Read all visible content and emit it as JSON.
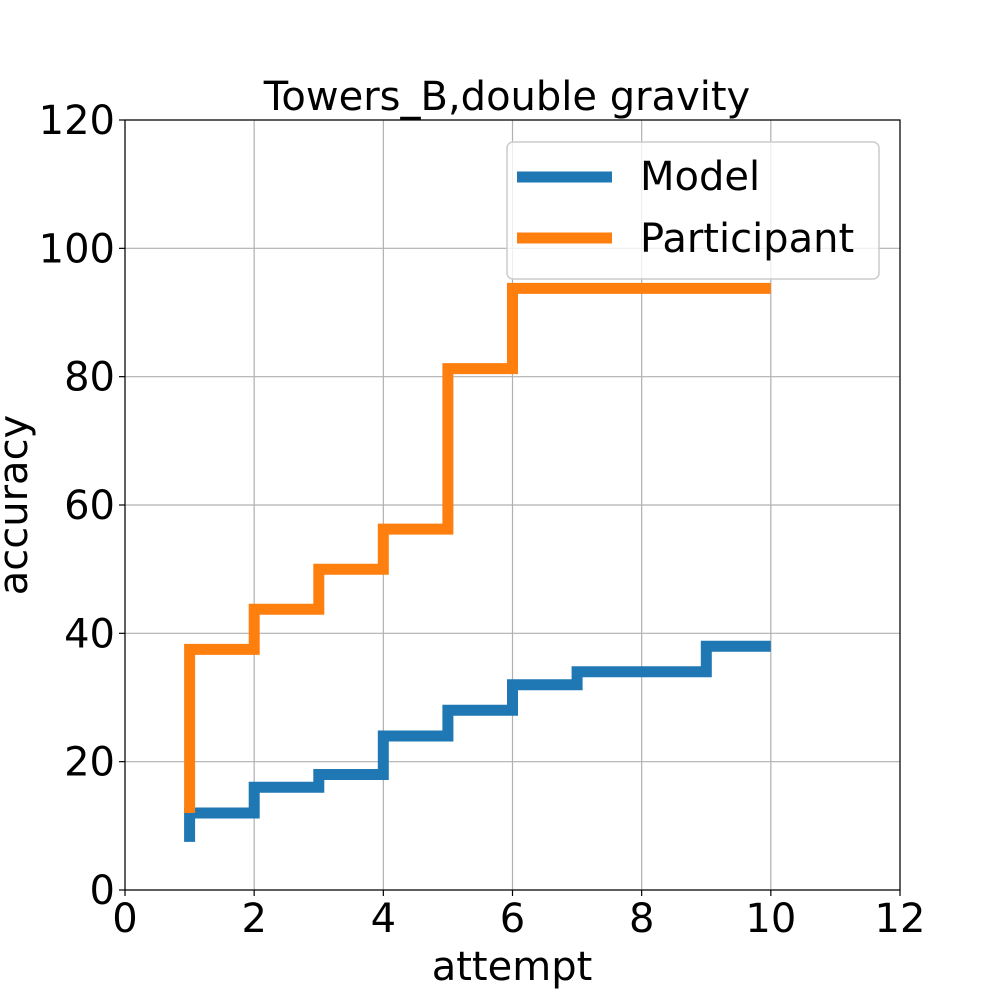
{
  "chart_data": {
    "type": "line",
    "step": "post",
    "title": "Towers_B,double gravity",
    "xlabel": "attempt",
    "ylabel": "accuracy",
    "xlim": [
      0,
      12
    ],
    "ylim": [
      0,
      120
    ],
    "xticks": [
      0,
      2,
      4,
      6,
      8,
      10,
      12
    ],
    "yticks": [
      0,
      20,
      40,
      60,
      80,
      100,
      120
    ],
    "xtick_labels": [
      "0",
      "2",
      "4",
      "6",
      "8",
      "10",
      "12"
    ],
    "ytick_labels": [
      "0",
      "20",
      "40",
      "60",
      "80",
      "100",
      "120"
    ],
    "grid": true,
    "legend_position": "top-right",
    "series": [
      {
        "name": "Model",
        "color": "#1f77b4",
        "points": [
          {
            "x": 1,
            "y": 7.5
          },
          {
            "x": 1,
            "y": 12
          },
          {
            "x": 2,
            "y": 16
          },
          {
            "x": 3,
            "y": 18
          },
          {
            "x": 4,
            "y": 24
          },
          {
            "x": 5,
            "y": 28
          },
          {
            "x": 6,
            "y": 32
          },
          {
            "x": 7,
            "y": 34
          },
          {
            "x": 8,
            "y": 34
          },
          {
            "x": 9,
            "y": 38
          },
          {
            "x": 10,
            "y": 38
          }
        ]
      },
      {
        "name": "Participant",
        "color": "#ff7f0e",
        "points": [
          {
            "x": 1,
            "y": 12
          },
          {
            "x": 1,
            "y": 37.5
          },
          {
            "x": 2,
            "y": 43.75
          },
          {
            "x": 3,
            "y": 50
          },
          {
            "x": 4,
            "y": 56.25
          },
          {
            "x": 5,
            "y": 81.25
          },
          {
            "x": 6,
            "y": 93.75
          },
          {
            "x": 7,
            "y": 93.75
          },
          {
            "x": 8,
            "y": 93.75
          },
          {
            "x": 9,
            "y": 93.75
          },
          {
            "x": 10,
            "y": 93.75
          }
        ]
      }
    ]
  }
}
